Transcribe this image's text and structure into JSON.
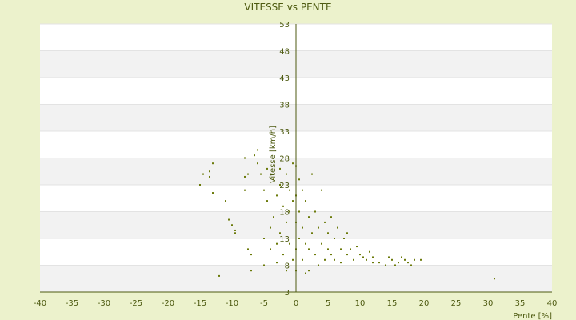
{
  "chart_data": {
    "type": "scatter",
    "title": "VITESSE vs PENTE",
    "xlabel": "Pente [%]",
    "ylabel": "Vitesse [km/h]",
    "xlim": [
      -40,
      40
    ],
    "ylim": [
      3,
      53
    ],
    "x_ticks": [
      -40,
      -35,
      -30,
      -25,
      -20,
      -15,
      -10,
      -5,
      0,
      5,
      10,
      15,
      20,
      25,
      30,
      35,
      40
    ],
    "y_ticks": [
      3,
      8,
      13,
      18,
      23,
      28,
      33,
      38,
      43,
      48,
      53
    ],
    "x_tick_labels": [
      "-40",
      "-35",
      "-30",
      "-25",
      "-20",
      "-15",
      "-10",
      "-5",
      "0",
      "5",
      "10",
      "15",
      "20",
      "25",
      "30",
      "35",
      "40"
    ],
    "y_tick_labels": [
      "3",
      "8",
      "13",
      "18",
      "23",
      "28",
      "33",
      "38",
      "43",
      "48",
      "53"
    ],
    "grid": true,
    "background_bands": true,
    "colors": {
      "marker": "#6b7a0a",
      "axis": "#4d5a10",
      "band": "#f2f2f2",
      "plot_bg": "#ffffff",
      "page_bg": "#ecf2cc"
    },
    "series": [
      {
        "points": [
          [
            -13,
            27
          ],
          [
            -14.5,
            25
          ],
          [
            -13.5,
            25.5
          ],
          [
            -13.5,
            24.5
          ],
          [
            -15,
            23
          ],
          [
            -13,
            21.5
          ],
          [
            -12,
            6
          ],
          [
            -11,
            20
          ],
          [
            -10.5,
            16.5
          ],
          [
            -10,
            15.5
          ],
          [
            -9.5,
            14.5
          ],
          [
            -9.5,
            14
          ],
          [
            -8,
            22
          ],
          [
            -7.5,
            25
          ],
          [
            -8,
            24.5
          ],
          [
            -8,
            28
          ],
          [
            -7.5,
            11
          ],
          [
            -7,
            7
          ],
          [
            -7,
            10
          ],
          [
            -6.5,
            28.5
          ],
          [
            -6,
            29.5
          ],
          [
            -6,
            27
          ],
          [
            -5.5,
            25
          ],
          [
            -5,
            22
          ],
          [
            -5,
            13
          ],
          [
            -5,
            8
          ],
          [
            -4.5,
            26
          ],
          [
            -4.5,
            20
          ],
          [
            -4,
            15
          ],
          [
            -4,
            11
          ],
          [
            -3.5,
            24
          ],
          [
            -3.5,
            17
          ],
          [
            -3,
            21
          ],
          [
            -3,
            12
          ],
          [
            -3,
            8.5
          ],
          [
            -2.5,
            26
          ],
          [
            -2.5,
            23
          ],
          [
            -2.5,
            14
          ],
          [
            -2,
            19
          ],
          [
            -2,
            10
          ],
          [
            -1.5,
            25
          ],
          [
            -1.5,
            16
          ],
          [
            -1.5,
            7
          ],
          [
            -1,
            22
          ],
          [
            -1,
            18
          ],
          [
            -1,
            12
          ],
          [
            -0.5,
            27
          ],
          [
            -0.5,
            20
          ],
          [
            -0.5,
            9
          ],
          [
            0,
            26.5
          ],
          [
            0,
            21
          ],
          [
            0,
            16
          ],
          [
            0,
            11
          ],
          [
            0,
            7
          ],
          [
            0.5,
            24
          ],
          [
            0.5,
            18
          ],
          [
            0.5,
            13
          ],
          [
            1,
            22
          ],
          [
            1,
            15
          ],
          [
            1,
            9
          ],
          [
            1.5,
            20
          ],
          [
            1.5,
            12
          ],
          [
            1.5,
            6.5
          ],
          [
            2,
            17
          ],
          [
            2,
            11
          ],
          [
            2,
            7
          ],
          [
            2.5,
            25
          ],
          [
            2.5,
            14
          ],
          [
            3,
            18
          ],
          [
            3,
            10
          ],
          [
            3.5,
            15
          ],
          [
            3.5,
            8
          ],
          [
            4,
            22
          ],
          [
            4,
            12
          ],
          [
            4.5,
            16
          ],
          [
            4.5,
            9
          ],
          [
            5,
            14
          ],
          [
            5,
            11
          ],
          [
            5.5,
            17
          ],
          [
            5.5,
            10
          ],
          [
            6,
            13
          ],
          [
            6,
            9
          ],
          [
            6.5,
            15
          ],
          [
            7,
            11
          ],
          [
            7,
            8.5
          ],
          [
            7.5,
            13
          ],
          [
            8,
            10
          ],
          [
            8,
            14
          ],
          [
            8.5,
            11
          ],
          [
            9,
            9
          ],
          [
            9.5,
            11.5
          ],
          [
            10,
            10
          ],
          [
            10.5,
            9.5
          ],
          [
            11,
            9
          ],
          [
            11.5,
            10.5
          ],
          [
            12,
            8.5
          ],
          [
            12,
            9.5
          ],
          [
            13,
            8.5
          ],
          [
            14,
            8
          ],
          [
            14.5,
            9.5
          ],
          [
            15,
            9
          ],
          [
            15.5,
            8
          ],
          [
            16,
            8.5
          ],
          [
            16.5,
            9.5
          ],
          [
            17,
            9
          ],
          [
            17.5,
            8.5
          ],
          [
            18,
            8
          ],
          [
            18.5,
            9
          ],
          [
            19.5,
            9
          ],
          [
            31,
            5.5
          ]
        ]
      }
    ]
  }
}
